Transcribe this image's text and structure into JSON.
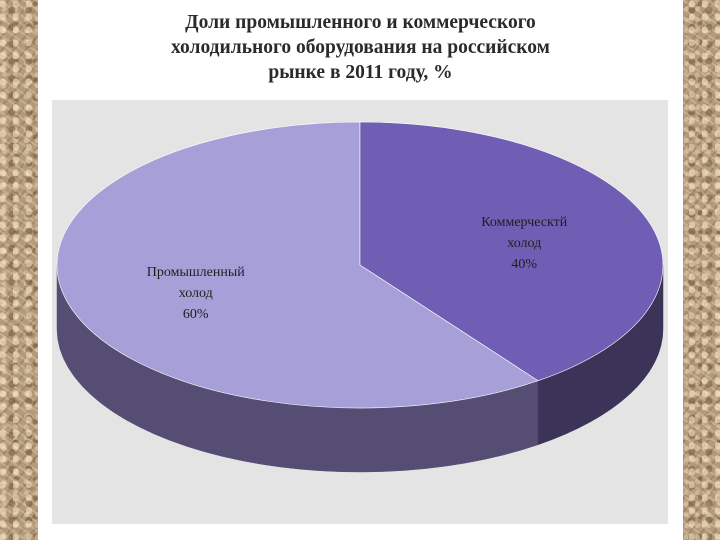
{
  "chart_data": {
    "type": "pie",
    "title_lines": [
      "Доли промышленного и коммерческого",
      "холодильного оборудования на российском",
      "рынке в 2011 году, %"
    ],
    "slices": [
      {
        "label_lines": [
          "Промышленный",
          "холод"
        ],
        "value": 60,
        "value_label": "60%",
        "color": "#a7a0d8",
        "side_color": "#564d74"
      },
      {
        "label_lines": [
          "Коммерческтй",
          "холод"
        ],
        "value": 40,
        "value_label": "40%",
        "color": "#6f5eb3",
        "side_color": "#3c3458"
      }
    ],
    "legend": "none",
    "style": "3d"
  }
}
